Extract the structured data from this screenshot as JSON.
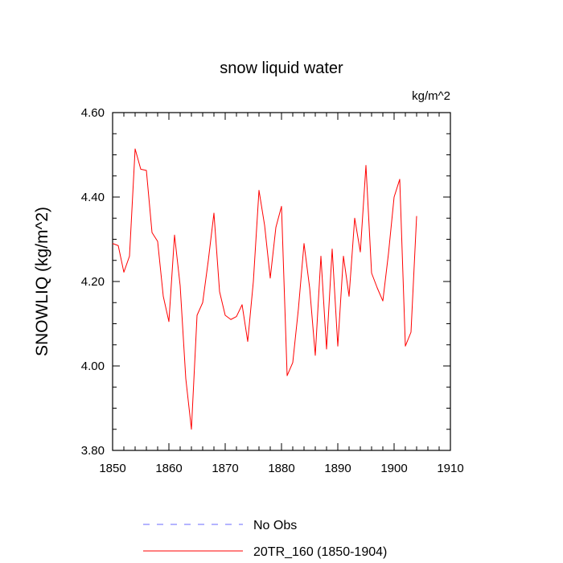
{
  "chart_data": {
    "type": "line",
    "title": "snow liquid water",
    "units_label": "kg/m^2",
    "ylabel": "SNOWLIQ  (kg/m^2)",
    "xlabel": "",
    "xlim": [
      1850,
      1910
    ],
    "ylim": [
      3.8,
      4.6
    ],
    "x_ticks": [
      "1850",
      "1860",
      "1870",
      "1880",
      "1890",
      "1900",
      "1910"
    ],
    "x_tick_values": [
      1850,
      1860,
      1870,
      1880,
      1890,
      1900,
      1910
    ],
    "y_ticks": [
      "3.80",
      "4.00",
      "4.20",
      "4.40",
      "4.60"
    ],
    "y_tick_values": [
      3.8,
      4.0,
      4.2,
      4.4,
      4.6
    ],
    "series": [
      {
        "name": "20TR_160 (1850-1904)",
        "color": "#ff0000",
        "style": "solid",
        "x": [
          1850,
          1851,
          1852,
          1853,
          1854,
          1855,
          1856,
          1857,
          1858,
          1859,
          1860,
          1861,
          1862,
          1863,
          1864,
          1865,
          1866,
          1867,
          1868,
          1869,
          1870,
          1871,
          1872,
          1873,
          1874,
          1875,
          1876,
          1877,
          1878,
          1879,
          1880,
          1881,
          1882,
          1883,
          1884,
          1885,
          1886,
          1887,
          1888,
          1889,
          1890,
          1891,
          1892,
          1893,
          1894,
          1895,
          1896,
          1897,
          1898,
          1899,
          1900,
          1901,
          1902,
          1903,
          1904
        ],
        "values": [
          4.29,
          4.285,
          4.222,
          4.26,
          4.514,
          4.466,
          4.463,
          4.316,
          4.295,
          4.165,
          4.105,
          4.31,
          4.19,
          3.97,
          3.85,
          4.12,
          4.15,
          4.25,
          4.362,
          4.176,
          4.12,
          4.11,
          4.117,
          4.145,
          4.058,
          4.2,
          4.416,
          4.333,
          4.208,
          4.328,
          4.378,
          3.977,
          4.008,
          4.135,
          4.29,
          4.185,
          4.025,
          4.26,
          4.04,
          4.277,
          4.047,
          4.26,
          4.165,
          4.35,
          4.27,
          4.475,
          4.22,
          4.185,
          4.154,
          4.266,
          4.4,
          4.442,
          4.047,
          4.08,
          4.355
        ]
      }
    ],
    "legend": {
      "position": "bottom",
      "entries": [
        {
          "label": "No Obs",
          "color": "#6a6aff",
          "style": "dashed"
        },
        {
          "label": "20TR_160 (1850-1904)",
          "color": "#ff0000",
          "style": "solid"
        }
      ]
    }
  }
}
